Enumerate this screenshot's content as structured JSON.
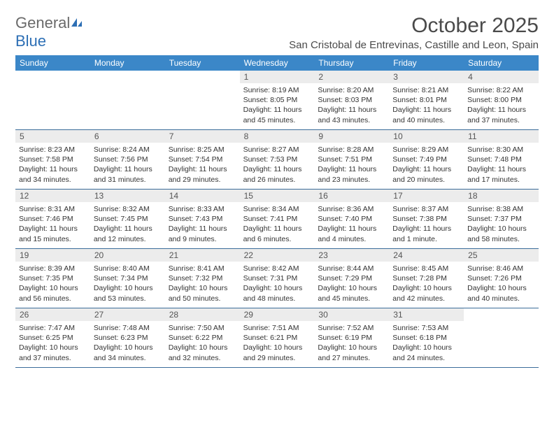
{
  "brand": {
    "text_general": "General",
    "text_blue": "Blue",
    "logo_color": "#2d6fb5"
  },
  "title": "October 2025",
  "location": "San Cristobal de Entrevinas, Castille and Leon, Spain",
  "colors": {
    "header_bg": "#3b87c8",
    "header_text": "#ffffff",
    "daynum_bg": "#ececec",
    "border": "#3b6d9a",
    "text": "#333333"
  },
  "day_names": [
    "Sunday",
    "Monday",
    "Tuesday",
    "Wednesday",
    "Thursday",
    "Friday",
    "Saturday"
  ],
  "weeks": [
    [
      {
        "empty": true
      },
      {
        "empty": true
      },
      {
        "empty": true
      },
      {
        "num": "1",
        "sunrise": "Sunrise: 8:19 AM",
        "sunset": "Sunset: 8:05 PM",
        "daylight1": "Daylight: 11 hours",
        "daylight2": "and 45 minutes."
      },
      {
        "num": "2",
        "sunrise": "Sunrise: 8:20 AM",
        "sunset": "Sunset: 8:03 PM",
        "daylight1": "Daylight: 11 hours",
        "daylight2": "and 43 minutes."
      },
      {
        "num": "3",
        "sunrise": "Sunrise: 8:21 AM",
        "sunset": "Sunset: 8:01 PM",
        "daylight1": "Daylight: 11 hours",
        "daylight2": "and 40 minutes."
      },
      {
        "num": "4",
        "sunrise": "Sunrise: 8:22 AM",
        "sunset": "Sunset: 8:00 PM",
        "daylight1": "Daylight: 11 hours",
        "daylight2": "and 37 minutes."
      }
    ],
    [
      {
        "num": "5",
        "sunrise": "Sunrise: 8:23 AM",
        "sunset": "Sunset: 7:58 PM",
        "daylight1": "Daylight: 11 hours",
        "daylight2": "and 34 minutes."
      },
      {
        "num": "6",
        "sunrise": "Sunrise: 8:24 AM",
        "sunset": "Sunset: 7:56 PM",
        "daylight1": "Daylight: 11 hours",
        "daylight2": "and 31 minutes."
      },
      {
        "num": "7",
        "sunrise": "Sunrise: 8:25 AM",
        "sunset": "Sunset: 7:54 PM",
        "daylight1": "Daylight: 11 hours",
        "daylight2": "and 29 minutes."
      },
      {
        "num": "8",
        "sunrise": "Sunrise: 8:27 AM",
        "sunset": "Sunset: 7:53 PM",
        "daylight1": "Daylight: 11 hours",
        "daylight2": "and 26 minutes."
      },
      {
        "num": "9",
        "sunrise": "Sunrise: 8:28 AM",
        "sunset": "Sunset: 7:51 PM",
        "daylight1": "Daylight: 11 hours",
        "daylight2": "and 23 minutes."
      },
      {
        "num": "10",
        "sunrise": "Sunrise: 8:29 AM",
        "sunset": "Sunset: 7:49 PM",
        "daylight1": "Daylight: 11 hours",
        "daylight2": "and 20 minutes."
      },
      {
        "num": "11",
        "sunrise": "Sunrise: 8:30 AM",
        "sunset": "Sunset: 7:48 PM",
        "daylight1": "Daylight: 11 hours",
        "daylight2": "and 17 minutes."
      }
    ],
    [
      {
        "num": "12",
        "sunrise": "Sunrise: 8:31 AM",
        "sunset": "Sunset: 7:46 PM",
        "daylight1": "Daylight: 11 hours",
        "daylight2": "and 15 minutes."
      },
      {
        "num": "13",
        "sunrise": "Sunrise: 8:32 AM",
        "sunset": "Sunset: 7:45 PM",
        "daylight1": "Daylight: 11 hours",
        "daylight2": "and 12 minutes."
      },
      {
        "num": "14",
        "sunrise": "Sunrise: 8:33 AM",
        "sunset": "Sunset: 7:43 PM",
        "daylight1": "Daylight: 11 hours",
        "daylight2": "and 9 minutes."
      },
      {
        "num": "15",
        "sunrise": "Sunrise: 8:34 AM",
        "sunset": "Sunset: 7:41 PM",
        "daylight1": "Daylight: 11 hours",
        "daylight2": "and 6 minutes."
      },
      {
        "num": "16",
        "sunrise": "Sunrise: 8:36 AM",
        "sunset": "Sunset: 7:40 PM",
        "daylight1": "Daylight: 11 hours",
        "daylight2": "and 4 minutes."
      },
      {
        "num": "17",
        "sunrise": "Sunrise: 8:37 AM",
        "sunset": "Sunset: 7:38 PM",
        "daylight1": "Daylight: 11 hours",
        "daylight2": "and 1 minute."
      },
      {
        "num": "18",
        "sunrise": "Sunrise: 8:38 AM",
        "sunset": "Sunset: 7:37 PM",
        "daylight1": "Daylight: 10 hours",
        "daylight2": "and 58 minutes."
      }
    ],
    [
      {
        "num": "19",
        "sunrise": "Sunrise: 8:39 AM",
        "sunset": "Sunset: 7:35 PM",
        "daylight1": "Daylight: 10 hours",
        "daylight2": "and 56 minutes."
      },
      {
        "num": "20",
        "sunrise": "Sunrise: 8:40 AM",
        "sunset": "Sunset: 7:34 PM",
        "daylight1": "Daylight: 10 hours",
        "daylight2": "and 53 minutes."
      },
      {
        "num": "21",
        "sunrise": "Sunrise: 8:41 AM",
        "sunset": "Sunset: 7:32 PM",
        "daylight1": "Daylight: 10 hours",
        "daylight2": "and 50 minutes."
      },
      {
        "num": "22",
        "sunrise": "Sunrise: 8:42 AM",
        "sunset": "Sunset: 7:31 PM",
        "daylight1": "Daylight: 10 hours",
        "daylight2": "and 48 minutes."
      },
      {
        "num": "23",
        "sunrise": "Sunrise: 8:44 AM",
        "sunset": "Sunset: 7:29 PM",
        "daylight1": "Daylight: 10 hours",
        "daylight2": "and 45 minutes."
      },
      {
        "num": "24",
        "sunrise": "Sunrise: 8:45 AM",
        "sunset": "Sunset: 7:28 PM",
        "daylight1": "Daylight: 10 hours",
        "daylight2": "and 42 minutes."
      },
      {
        "num": "25",
        "sunrise": "Sunrise: 8:46 AM",
        "sunset": "Sunset: 7:26 PM",
        "daylight1": "Daylight: 10 hours",
        "daylight2": "and 40 minutes."
      }
    ],
    [
      {
        "num": "26",
        "sunrise": "Sunrise: 7:47 AM",
        "sunset": "Sunset: 6:25 PM",
        "daylight1": "Daylight: 10 hours",
        "daylight2": "and 37 minutes."
      },
      {
        "num": "27",
        "sunrise": "Sunrise: 7:48 AM",
        "sunset": "Sunset: 6:23 PM",
        "daylight1": "Daylight: 10 hours",
        "daylight2": "and 34 minutes."
      },
      {
        "num": "28",
        "sunrise": "Sunrise: 7:50 AM",
        "sunset": "Sunset: 6:22 PM",
        "daylight1": "Daylight: 10 hours",
        "daylight2": "and 32 minutes."
      },
      {
        "num": "29",
        "sunrise": "Sunrise: 7:51 AM",
        "sunset": "Sunset: 6:21 PM",
        "daylight1": "Daylight: 10 hours",
        "daylight2": "and 29 minutes."
      },
      {
        "num": "30",
        "sunrise": "Sunrise: 7:52 AM",
        "sunset": "Sunset: 6:19 PM",
        "daylight1": "Daylight: 10 hours",
        "daylight2": "and 27 minutes."
      },
      {
        "num": "31",
        "sunrise": "Sunrise: 7:53 AM",
        "sunset": "Sunset: 6:18 PM",
        "daylight1": "Daylight: 10 hours",
        "daylight2": "and 24 minutes."
      },
      {
        "empty": true
      }
    ]
  ]
}
